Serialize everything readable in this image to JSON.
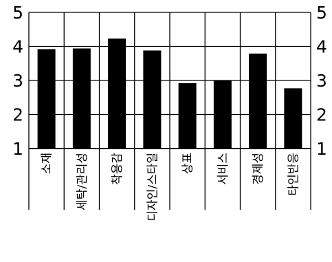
{
  "chart_data": {
    "type": "bar",
    "title": "",
    "xlabel": "",
    "ylabel": "",
    "categories": [
      "소재",
      "세탁/관리성",
      "착용감",
      "디자인/스타일",
      "상표",
      "서비스",
      "경제성",
      "타인반응"
    ],
    "values": [
      3.92,
      3.94,
      4.23,
      3.88,
      2.92,
      3.01,
      3.79,
      2.77
    ],
    "ylim": [
      1,
      5
    ],
    "yticks": [
      1,
      2,
      3,
      4,
      5
    ],
    "grid": true,
    "legend": "none",
    "colors": {
      "bar": "#000000",
      "axis": "#000000",
      "background": "#ffffff"
    }
  }
}
